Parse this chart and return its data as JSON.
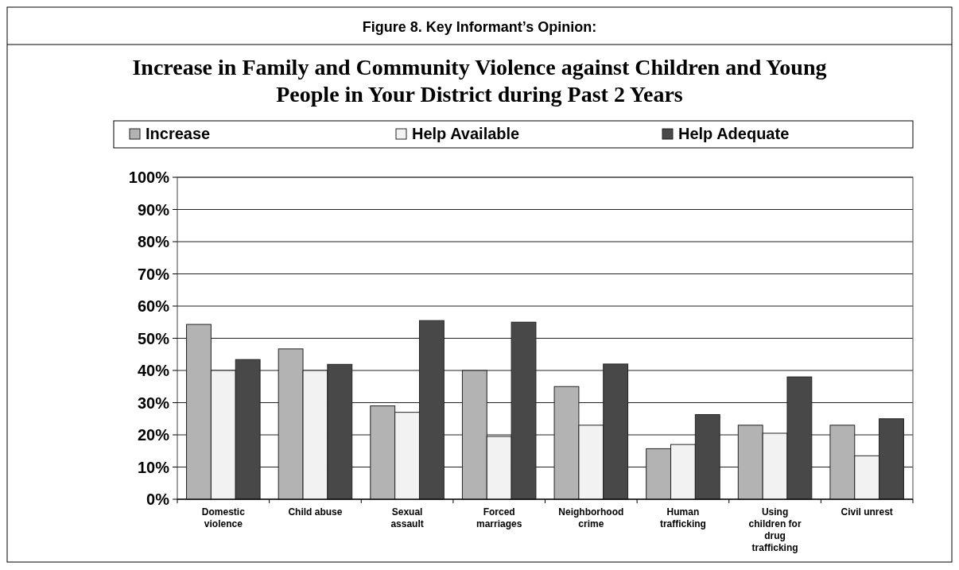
{
  "chart_data": {
    "type": "bar",
    "title": "Figure 8. Key Informant’s Opinion:",
    "subtitle": "Increase in Family and Community Violence against Children and Young People in Your District during Past 2 Years",
    "categories": [
      "Domestic violence",
      "Child abuse",
      "Sexual assault",
      "Forced marriages",
      "Neighborhood crime",
      "Human trafficking",
      "Using children for drug trafficking",
      "Civil unrest"
    ],
    "series": [
      {
        "name": "Increase",
        "color": "#b3b3b3",
        "values": [
          54.3,
          46.7,
          29,
          40,
          35,
          15.7,
          23,
          23
        ]
      },
      {
        "name": "Help Available",
        "color": "#f2f2f2",
        "values": [
          40,
          40,
          27,
          19.5,
          23,
          17,
          20.5,
          13.5
        ]
      },
      {
        "name": "Help Adequate",
        "color": "#484848",
        "values": [
          43.4,
          41.9,
          55.5,
          55,
          42,
          26.3,
          38,
          25
        ]
      }
    ],
    "ylim": [
      0,
      100
    ],
    "yticks": [
      {
        "value": 0,
        "label": "0%"
      },
      {
        "value": 10,
        "label": "10%"
      },
      {
        "value": 20,
        "label": "20%"
      },
      {
        "value": 30,
        "label": "30%"
      },
      {
        "value": 40,
        "label": "40%"
      },
      {
        "value": 50,
        "label": "50%"
      },
      {
        "value": 60,
        "label": "60%"
      },
      {
        "value": 70,
        "label": "70%"
      },
      {
        "value": 80,
        "label": "80%"
      },
      {
        "value": 90,
        "label": "90%"
      },
      {
        "value": 100,
        "label": "100%"
      }
    ],
    "grid": "y",
    "legend": "top"
  }
}
